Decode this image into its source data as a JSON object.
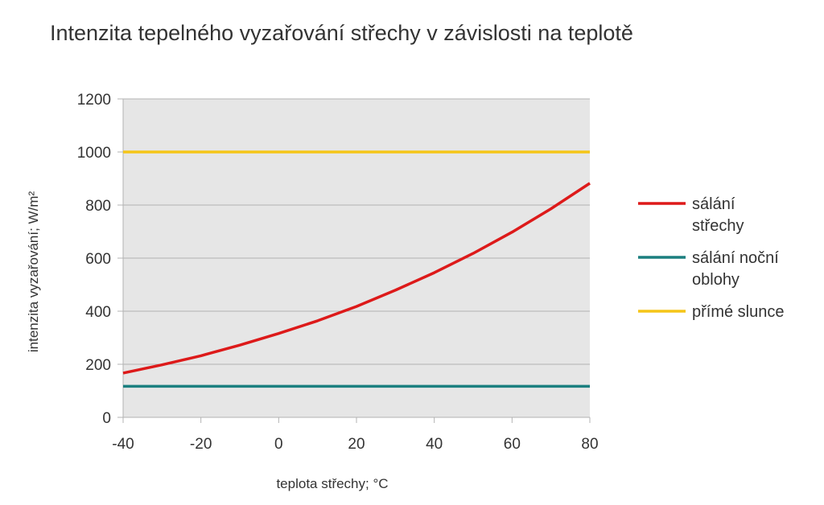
{
  "chart_data": {
    "type": "line",
    "title": "Intenzita tepelného vyzařování střechy v závislosti na teplotě",
    "xlabel": "teplota střechy; °C",
    "ylabel": "intenzita vyzařování; W/m²",
    "xlim": [
      -40,
      80
    ],
    "ylim": [
      0,
      1200
    ],
    "xticks": [
      -40,
      -20,
      0,
      20,
      40,
      60,
      80
    ],
    "yticks": [
      0,
      200,
      400,
      600,
      800,
      1000,
      1200
    ],
    "grid": true,
    "legend_position": "right",
    "plot_background": "#e6e6e6",
    "series": [
      {
        "name": "sálání střechy",
        "name_lines": [
          "sálání",
          "střechy"
        ],
        "color": "#dd1a1a",
        "x": [
          -40,
          -30,
          -20,
          -10,
          0,
          10,
          20,
          30,
          40,
          50,
          60,
          70,
          80
        ],
        "y": [
          167,
          198,
          232,
          272,
          316,
          364,
          418,
          479,
          545,
          618,
          698,
          786,
          882
        ]
      },
      {
        "name": "sálání noční oblohy",
        "name_lines": [
          "sálání noční",
          "oblohy"
        ],
        "color": "#1b7f7f",
        "x": [
          -40,
          80
        ],
        "y": [
          117,
          117
        ]
      },
      {
        "name": "přímé slunce",
        "name_lines": [
          "přímé slunce"
        ],
        "color": "#f5c518",
        "x": [
          -40,
          80
        ],
        "y": [
          1000,
          1000
        ]
      }
    ]
  }
}
